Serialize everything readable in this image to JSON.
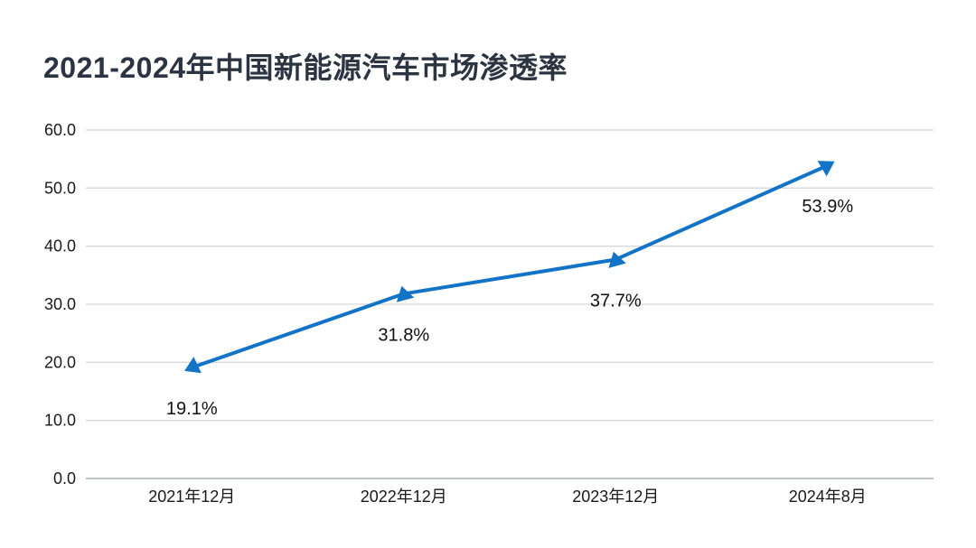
{
  "chart_data": {
    "type": "line",
    "title": "2021-2024年中国新能源汽车市场渗透率",
    "categories": [
      "2021年12月",
      "2022年12月",
      "2023年12月",
      "2024年8月"
    ],
    "series": [
      {
        "values": [
          19.1,
          31.8,
          37.7,
          53.9
        ],
        "data_labels": [
          "19.1%",
          "31.8%",
          "37.7%",
          "53.9%"
        ]
      }
    ],
    "y_axis": {
      "ticks": [
        "60.0",
        "50.0",
        "40.0",
        "30.0",
        "20.0",
        "10.0",
        "0.0"
      ],
      "min": 0,
      "max": 60,
      "interval": 10
    },
    "x_axis_label": "",
    "y_axis_label": "",
    "grid": "horizontal",
    "legend": "none",
    "marker_shape": "triangle",
    "colors": {
      "line": "#1273c7",
      "marker": "#1273c7",
      "title": "#2b3440",
      "tick_label": "#1a1a1a",
      "data_label": "#111111",
      "gridline": "#d8d8d8",
      "axis_line": "#bfc3c5",
      "background": "#ffffff"
    }
  }
}
